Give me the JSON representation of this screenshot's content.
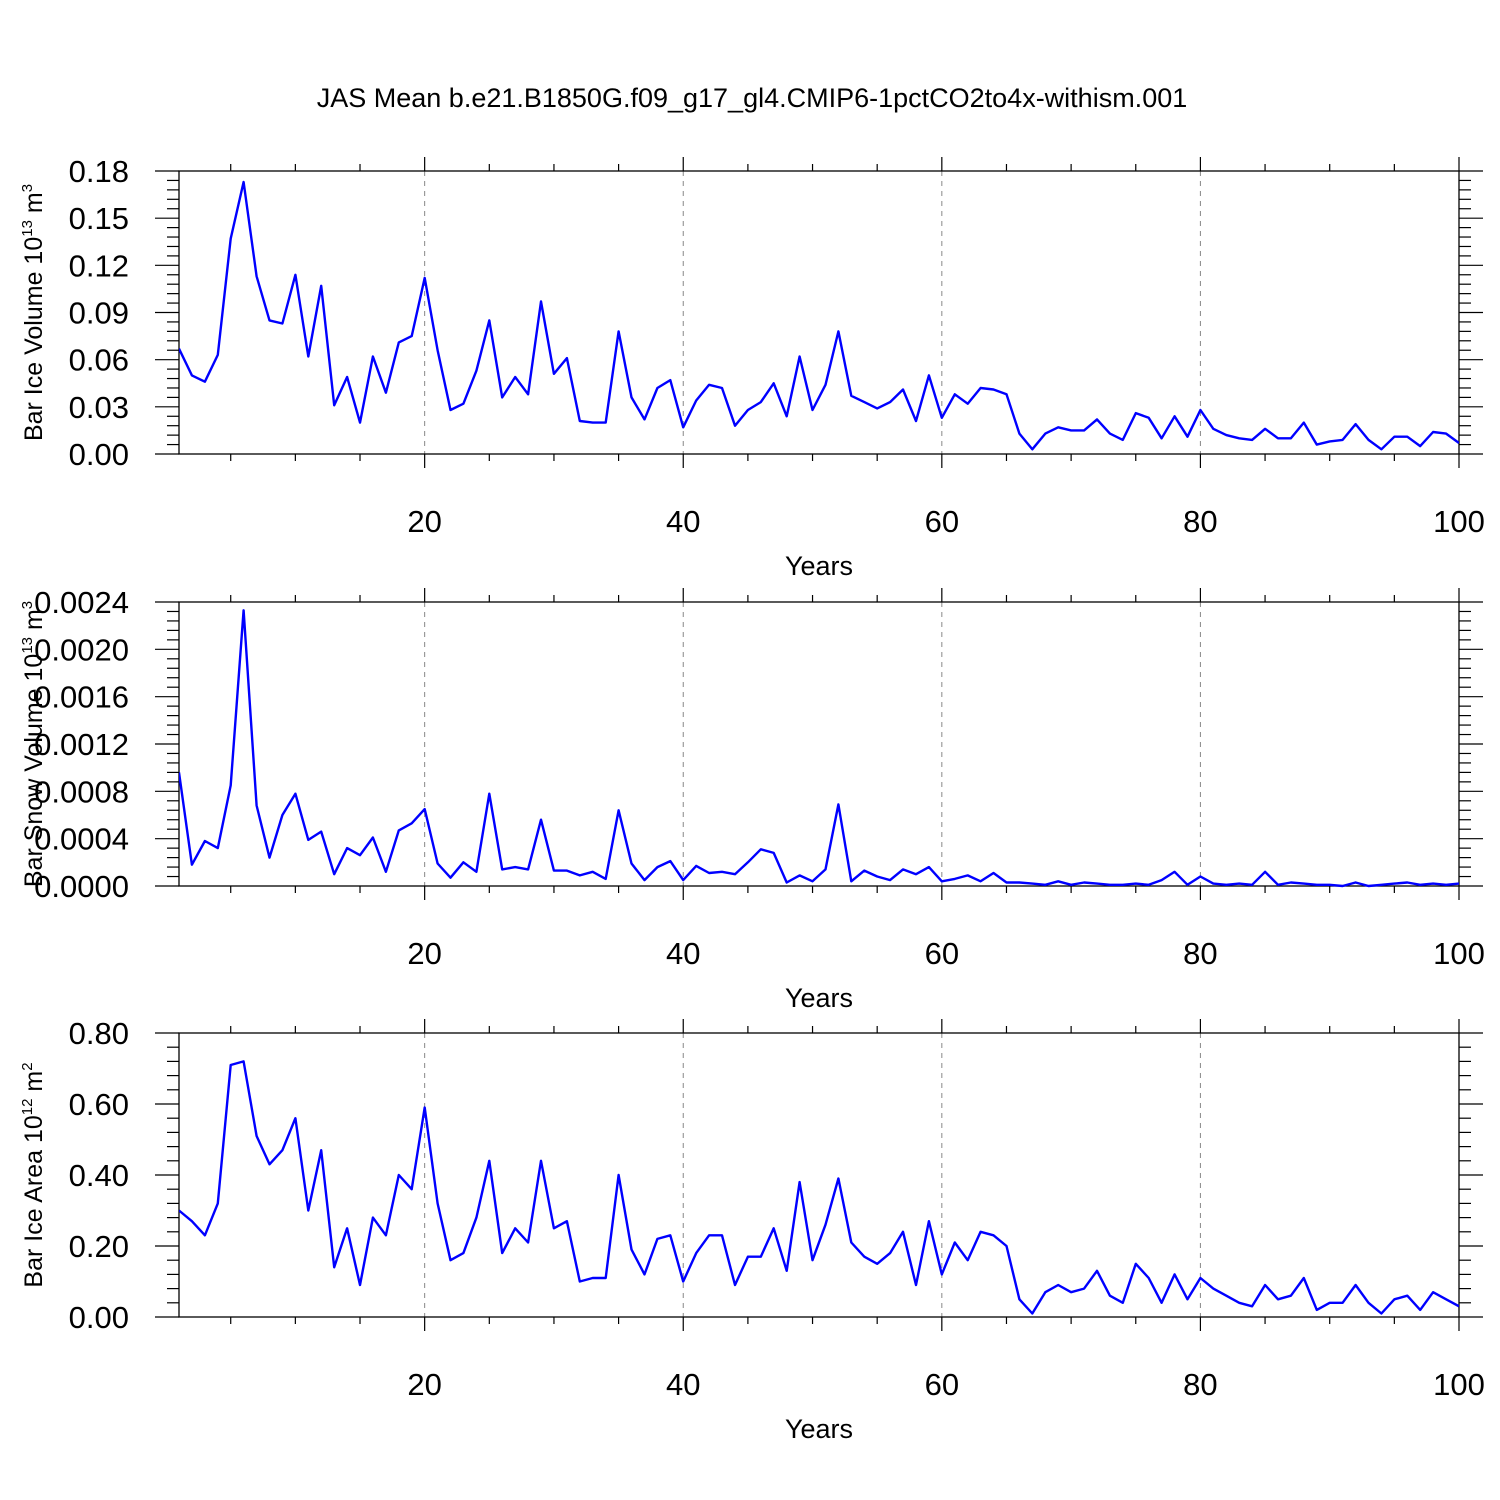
{
  "title": "JAS Mean b.e21.B1850G.f09_g17_gl4.CMIP6-1pctCO2to4x-withism.001",
  "chart_data": [
    {
      "type": "line",
      "ylabel": {
        "text": "Bar Ice Volume 10",
        "exp": "13",
        "unit": " m",
        "unit_exp": "3"
      },
      "xlabel": "Years",
      "xlim": [
        1,
        100
      ],
      "ylim": [
        0,
        0.18
      ],
      "x_ticks": [
        20,
        40,
        60,
        80,
        100
      ],
      "y_ticks": [
        "0.00",
        "0.03",
        "0.06",
        "0.09",
        "0.12",
        "0.15",
        "0.18"
      ],
      "grid": "vertical dashed at x ticks",
      "line_color": "#0000ff",
      "x_start": 1,
      "values": [
        0.067,
        0.05,
        0.046,
        0.063,
        0.137,
        0.173,
        0.113,
        0.085,
        0.083,
        0.114,
        0.062,
        0.107,
        0.031,
        0.049,
        0.02,
        0.062,
        0.039,
        0.071,
        0.075,
        0.112,
        0.066,
        0.028,
        0.032,
        0.053,
        0.085,
        0.036,
        0.049,
        0.038,
        0.097,
        0.051,
        0.061,
        0.021,
        0.02,
        0.02,
        0.078,
        0.036,
        0.022,
        0.042,
        0.047,
        0.017,
        0.034,
        0.044,
        0.042,
        0.018,
        0.028,
        0.033,
        0.045,
        0.024,
        0.062,
        0.028,
        0.044,
        0.078,
        0.037,
        0.033,
        0.029,
        0.033,
        0.041,
        0.021,
        0.05,
        0.023,
        0.038,
        0.032,
        0.042,
        0.041,
        0.038,
        0.013,
        0.003,
        0.013,
        0.017,
        0.015,
        0.015,
        0.022,
        0.013,
        0.009,
        0.026,
        0.023,
        0.01,
        0.024,
        0.011,
        0.028,
        0.016,
        0.012,
        0.01,
        0.009,
        0.016,
        0.01,
        0.01,
        0.02,
        0.006,
        0.008,
        0.009,
        0.019,
        0.009,
        0.003,
        0.011,
        0.011,
        0.005,
        0.014,
        0.013,
        0.007
      ]
    },
    {
      "type": "line",
      "ylabel": {
        "text": "Bar Snow Volume 10",
        "exp": "13",
        "unit": " m",
        "unit_exp": "3"
      },
      "xlabel": "Years",
      "xlim": [
        1,
        100
      ],
      "ylim": [
        0,
        0.0024
      ],
      "x_ticks": [
        20,
        40,
        60,
        80,
        100
      ],
      "y_ticks": [
        "0.0000",
        "0.0004",
        "0.0008",
        "0.0012",
        "0.0016",
        "0.0020",
        "0.0024"
      ],
      "grid": "vertical dashed at x ticks",
      "line_color": "#0000ff",
      "x_start": 1,
      "values": [
        0.00096,
        0.00018,
        0.00038,
        0.00032,
        0.00085,
        0.00233,
        0.00068,
        0.00024,
        0.0006,
        0.00078,
        0.00039,
        0.00046,
        0.0001,
        0.00032,
        0.00026,
        0.00041,
        0.00012,
        0.00047,
        0.00053,
        0.00065,
        0.00019,
        7e-05,
        0.0002,
        0.00012,
        0.00078,
        0.00014,
        0.00016,
        0.00014,
        0.00056,
        0.00013,
        0.00013,
        9e-05,
        0.00012,
        6e-05,
        0.00064,
        0.00019,
        5e-05,
        0.00016,
        0.00021,
        5e-05,
        0.00017,
        0.00011,
        0.00012,
        0.0001,
        0.0002,
        0.00031,
        0.00028,
        3e-05,
        9e-05,
        4e-05,
        0.00014,
        0.00069,
        4e-05,
        0.00013,
        8e-05,
        5e-05,
        0.00014,
        0.0001,
        0.00016,
        4e-05,
        6e-05,
        9e-05,
        4e-05,
        0.00011,
        3e-05,
        3e-05,
        2e-05,
        1e-05,
        4e-05,
        1e-05,
        3e-05,
        2e-05,
        1e-05,
        1e-05,
        2e-05,
        1e-05,
        5e-05,
        0.00012,
        1e-05,
        8e-05,
        2e-05,
        1e-05,
        2e-05,
        1e-05,
        0.00012,
        1e-05,
        3e-05,
        2e-05,
        1e-05,
        1e-05,
        0.0,
        3e-05,
        0.0,
        1e-05,
        2e-05,
        3e-05,
        1e-05,
        2e-05,
        1e-05,
        2e-05
      ]
    },
    {
      "type": "line",
      "ylabel": {
        "text": "Bar Ice Area 10",
        "exp": "12",
        "unit": " m",
        "unit_exp": "2"
      },
      "xlabel": "Years",
      "xlim": [
        1,
        100
      ],
      "ylim": [
        0,
        0.8
      ],
      "x_ticks": [
        20,
        40,
        60,
        80,
        100
      ],
      "y_ticks": [
        "0.00",
        "0.20",
        "0.40",
        "0.60",
        "0.80"
      ],
      "grid": "vertical dashed at x ticks",
      "line_color": "#0000ff",
      "x_start": 1,
      "values": [
        0.3,
        0.27,
        0.23,
        0.32,
        0.71,
        0.72,
        0.51,
        0.43,
        0.47,
        0.56,
        0.3,
        0.47,
        0.14,
        0.25,
        0.09,
        0.28,
        0.23,
        0.4,
        0.36,
        0.59,
        0.32,
        0.16,
        0.18,
        0.28,
        0.44,
        0.18,
        0.25,
        0.21,
        0.44,
        0.25,
        0.27,
        0.1,
        0.11,
        0.11,
        0.4,
        0.19,
        0.12,
        0.22,
        0.23,
        0.1,
        0.18,
        0.23,
        0.23,
        0.09,
        0.17,
        0.17,
        0.25,
        0.13,
        0.38,
        0.16,
        0.26,
        0.39,
        0.21,
        0.17,
        0.15,
        0.18,
        0.24,
        0.09,
        0.27,
        0.12,
        0.21,
        0.16,
        0.24,
        0.23,
        0.2,
        0.05,
        0.01,
        0.07,
        0.09,
        0.07,
        0.08,
        0.13,
        0.06,
        0.04,
        0.15,
        0.11,
        0.04,
        0.12,
        0.05,
        0.11,
        0.08,
        0.06,
        0.04,
        0.03,
        0.09,
        0.05,
        0.06,
        0.11,
        0.02,
        0.04,
        0.04,
        0.09,
        0.04,
        0.01,
        0.05,
        0.06,
        0.02,
        0.07,
        0.05,
        0.03
      ]
    }
  ]
}
